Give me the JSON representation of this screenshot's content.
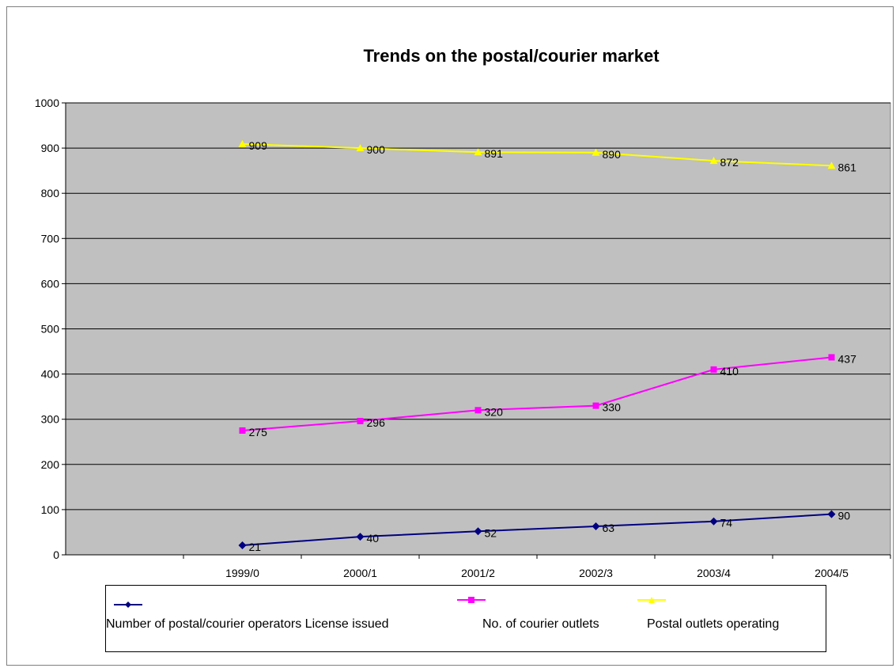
{
  "chart_data": {
    "type": "line",
    "title": "Trends on the postal/courier market",
    "categories": [
      "1999/0",
      "2000/1",
      "2001/2",
      "2002/3",
      "2003/4",
      "2004/5"
    ],
    "ylim": [
      0,
      1000
    ],
    "yticks": [
      0,
      100,
      200,
      300,
      400,
      500,
      600,
      700,
      800,
      900,
      1000
    ],
    "grid": true,
    "legend_position": "bottom",
    "background_color": "#c0c0c0",
    "series": [
      {
        "name": "Number of postal/courier operators License issued",
        "values": [
          21,
          40,
          52,
          63,
          74,
          90
        ],
        "color": "#000080",
        "marker": "diamond"
      },
      {
        "name": "No. of  courier outlets",
        "values": [
          275,
          296,
          320,
          330,
          410,
          437
        ],
        "color": "#ff00ff",
        "marker": "square"
      },
      {
        "name": "Postal outlets operating",
        "values": [
          909,
          900,
          891,
          890,
          872,
          861
        ],
        "color": "#ffff00",
        "marker": "triangle"
      }
    ]
  }
}
